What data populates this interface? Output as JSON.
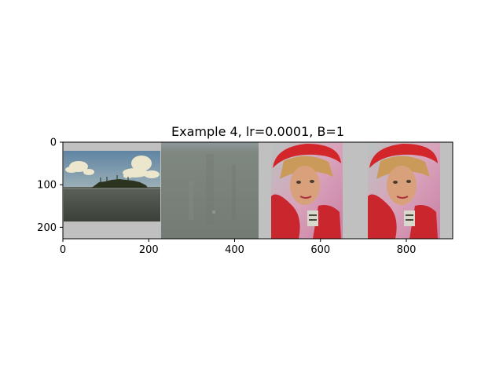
{
  "chart_data": {
    "type": "image",
    "title": "Example 4, lr=0.0001, B=1",
    "xlabel": "",
    "ylabel": "",
    "xlim": [
      0,
      908
    ],
    "ylim": [
      227,
      0
    ],
    "xticks": [
      0,
      200,
      400,
      600,
      800
    ],
    "yticks": [
      0,
      100,
      200
    ],
    "xtick_labels": [
      "0",
      "200",
      "400",
      "600",
      "800"
    ],
    "ytick_labels": [
      "0",
      "100",
      "200"
    ],
    "grid": false,
    "legend": "none",
    "panels": [
      {
        "name": "input-landscape",
        "x_range": [
          0,
          227
        ],
        "content": "lake with island, trees and cumulus clouds",
        "colors": {
          "sky": "#6f8fa8",
          "cloud": "#ece6cc",
          "water": "#4a5048",
          "island": "#2c3420",
          "pad": "#c0c0c0"
        }
      },
      {
        "name": "generated-output",
        "x_range": [
          227,
          454
        ],
        "content": "noisy grey-green texture",
        "colors": {
          "base": "#7b827c",
          "top": "#8e979a"
        }
      },
      {
        "name": "target-portrait",
        "x_range": [
          454,
          681
        ],
        "content": "woman wearing red hat and red scarf",
        "colors": {
          "background": "#d7a0b8",
          "hat": "#d2262a",
          "skin": "#d9a07c",
          "hair": "#c99a5a",
          "pad": "#c0c0c0"
        }
      },
      {
        "name": "reference-portrait",
        "x_range": [
          681,
          908
        ],
        "content": "woman wearing red hat and red scarf",
        "colors": {
          "background": "#d7a0b8",
          "hat": "#d2262a",
          "skin": "#d9a07c",
          "hair": "#c99a5a",
          "pad": "#c0c0c0"
        }
      }
    ]
  }
}
